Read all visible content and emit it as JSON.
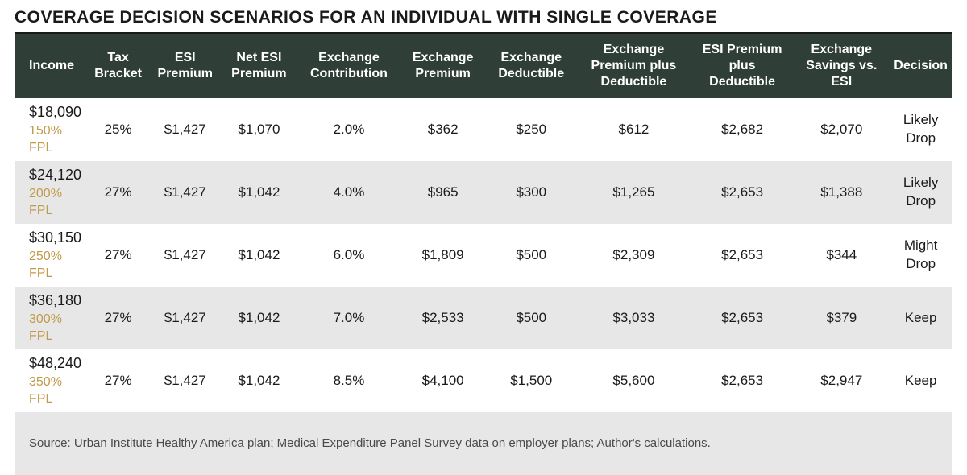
{
  "title": "COVERAGE DECISION SCENARIOS FOR AN INDIVIDUAL WITH SINGLE COVERAGE",
  "colors": {
    "header_bg": "#2f3e37",
    "header_fg": "#ffffff",
    "row_alt_bg": "#e7e7e7",
    "fpl_color": "#c19a49",
    "text": "#1a1a1a",
    "rule": "#1a1a1a"
  },
  "columns": [
    "Income",
    "Tax Bracket",
    "ESI Premium",
    "Net ESI Premium",
    "Exchange Contribution",
    "Exchange Premium",
    "Exchange Deductible",
    "Exchange Premium plus Deductible",
    "ESI Premium plus Deductible",
    "Exchange Savings vs. ESI",
    "Decision"
  ],
  "rows": [
    {
      "income": "$18,090",
      "fpl": "150% FPL",
      "tax": "25%",
      "esi_premium": "$1,427",
      "net_esi": "$1,070",
      "ex_contrib": "2.0%",
      "ex_premium": "$362",
      "ex_deduct": "$250",
      "ex_pd": "$612",
      "esi_pd": "$2,682",
      "savings": "$2,070",
      "decision1": "Likely",
      "decision2": "Drop"
    },
    {
      "income": "$24,120",
      "fpl": "200% FPL",
      "tax": "27%",
      "esi_premium": "$1,427",
      "net_esi": "$1,042",
      "ex_contrib": "4.0%",
      "ex_premium": "$965",
      "ex_deduct": "$300",
      "ex_pd": "$1,265",
      "esi_pd": "$2,653",
      "savings": "$1,388",
      "decision1": "Likely",
      "decision2": "Drop"
    },
    {
      "income": "$30,150",
      "fpl": "250% FPL",
      "tax": "27%",
      "esi_premium": "$1,427",
      "net_esi": "$1,042",
      "ex_contrib": "6.0%",
      "ex_premium": "$1,809",
      "ex_deduct": "$500",
      "ex_pd": "$2,309",
      "esi_pd": "$2,653",
      "savings": "$344",
      "decision1": "Might",
      "decision2": "Drop"
    },
    {
      "income": "$36,180",
      "fpl": "300% FPL",
      "tax": "27%",
      "esi_premium": "$1,427",
      "net_esi": "$1,042",
      "ex_contrib": "7.0%",
      "ex_premium": "$2,533",
      "ex_deduct": "$500",
      "ex_pd": "$3,033",
      "esi_pd": "$2,653",
      "savings": "$379",
      "decision1": "Keep",
      "decision2": ""
    },
    {
      "income": "$48,240",
      "fpl": "350% FPL",
      "tax": "27%",
      "esi_premium": "$1,427",
      "net_esi": "$1,042",
      "ex_contrib": "8.5%",
      "ex_premium": "$4,100",
      "ex_deduct": "$1,500",
      "ex_pd": "$5,600",
      "esi_pd": "$2,653",
      "savings": "$2,947",
      "decision1": "Keep",
      "decision2": ""
    }
  ],
  "source": "Source: Urban Institute Healthy America plan; Medical Expenditure Panel Survey data on employer plans; Author's calculations."
}
